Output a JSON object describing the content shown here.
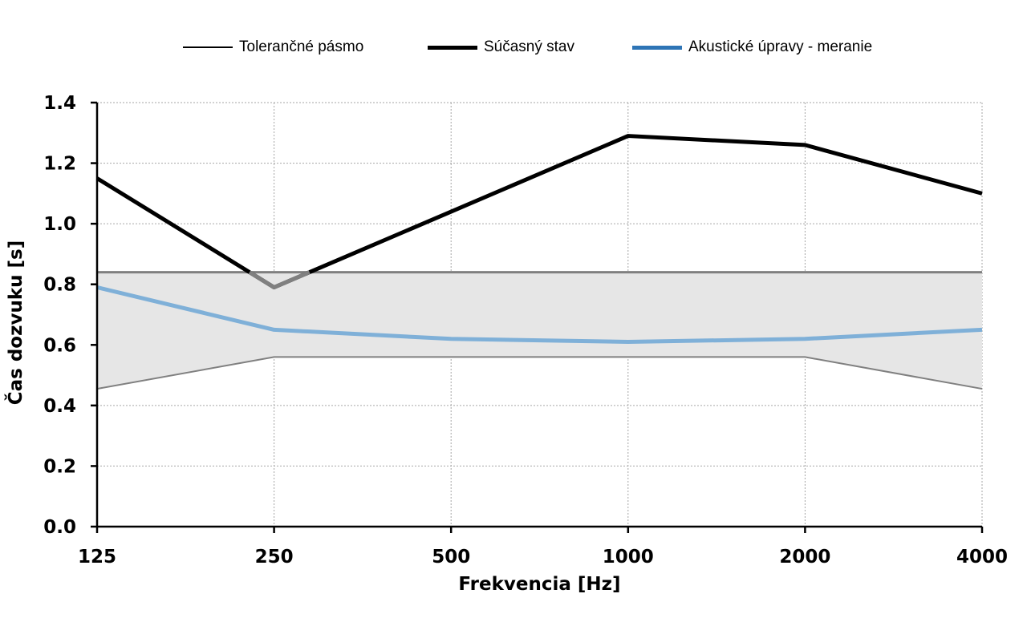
{
  "chart_data": {
    "type": "line",
    "x": [
      "125",
      "250",
      "500",
      "1000",
      "2000",
      "4000"
    ],
    "xlabel": "Frekvencia [Hz]",
    "ylabel": "Čas dozvuku [s]",
    "ylim": [
      0,
      1.4
    ],
    "yticks": [
      "0.0",
      "0.2",
      "0.4",
      "0.6",
      "0.8",
      "1.0",
      "1.2",
      "1.4"
    ],
    "grid": true,
    "legend_position": "top-center",
    "tolerance_band": {
      "name": "Tolerančné pásmo",
      "upper": [
        0.84,
        0.84,
        0.84,
        0.84,
        0.84,
        0.84
      ],
      "lower": [
        0.455,
        0.56,
        0.56,
        0.56,
        0.56,
        0.455
      ],
      "fill_color": "#e6e6e6",
      "line_color": "#808080"
    },
    "series": [
      {
        "name": "Súčasný stav",
        "values": [
          1.15,
          0.79,
          1.04,
          1.29,
          1.26,
          1.1
        ],
        "color": "#000000"
      },
      {
        "name": "Akustické úpravy - meranie",
        "values": [
          0.79,
          0.65,
          0.62,
          0.61,
          0.62,
          0.65
        ],
        "color": "#7fb0d8"
      }
    ],
    "legend": [
      {
        "label": "Tolerančné pásmo",
        "color": "#000000"
      },
      {
        "label": "Súčasný stav",
        "color": "#000000"
      },
      {
        "label": "Akustické úpravy - meranie",
        "color": "#2e75b6"
      }
    ]
  }
}
